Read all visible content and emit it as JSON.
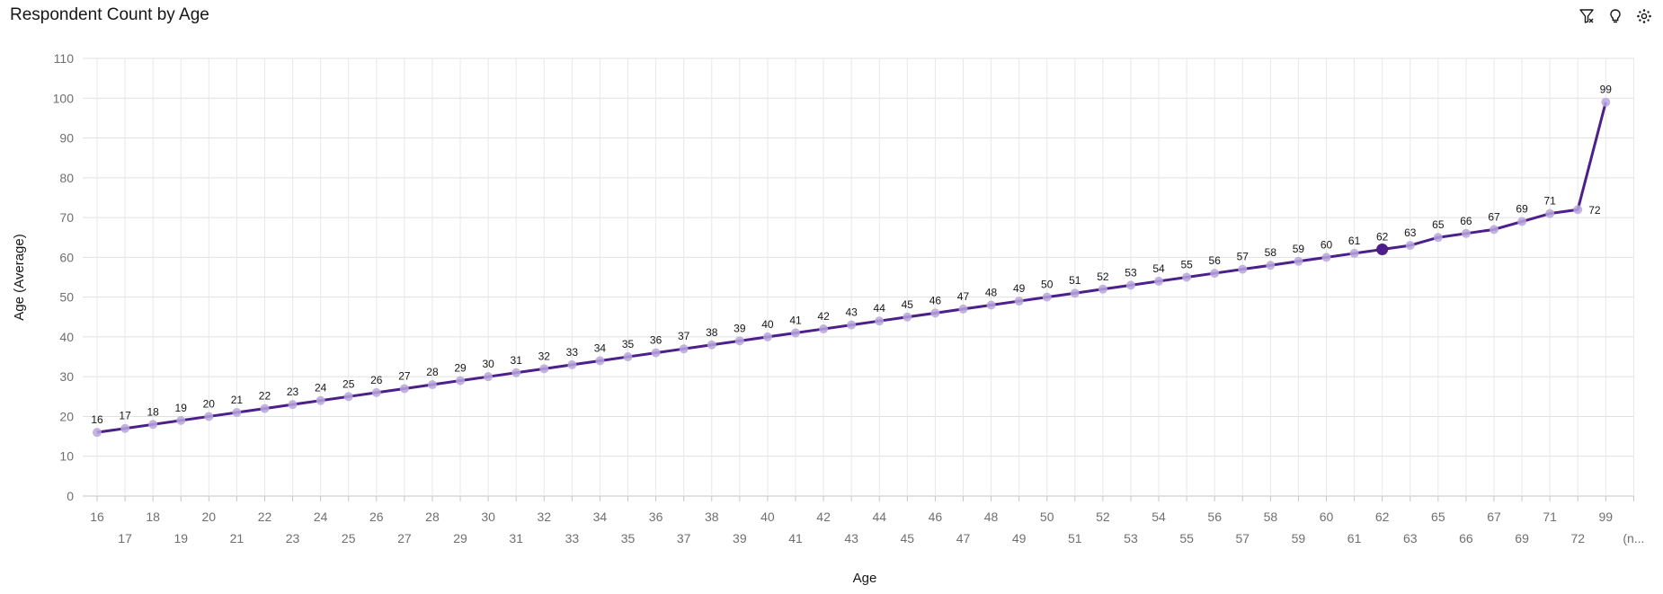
{
  "header": {
    "title": "Respondent Count by Age"
  },
  "toolbar": {
    "icons": [
      "filter-icon",
      "lightbulb-icon",
      "settings-icon"
    ]
  },
  "chart_data": {
    "type": "line",
    "xlabel": "Age",
    "ylabel": "Age (Average)",
    "ylim": [
      0,
      110
    ],
    "yticks": [
      0,
      10,
      20,
      30,
      40,
      50,
      60,
      70,
      80,
      90,
      100,
      110
    ],
    "grid": true,
    "categories": [
      "16",
      "17",
      "18",
      "19",
      "20",
      "21",
      "22",
      "23",
      "24",
      "25",
      "26",
      "27",
      "28",
      "29",
      "30",
      "31",
      "32",
      "33",
      "34",
      "35",
      "36",
      "37",
      "38",
      "39",
      "40",
      "41",
      "42",
      "43",
      "44",
      "45",
      "46",
      "47",
      "48",
      "49",
      "50",
      "51",
      "52",
      "53",
      "54",
      "55",
      "56",
      "57",
      "58",
      "59",
      "60",
      "61",
      "62",
      "63",
      "65",
      "66",
      "67",
      "69",
      "71",
      "72",
      "99",
      "(n..."
    ],
    "values": [
      16,
      17,
      18,
      19,
      20,
      21,
      22,
      23,
      24,
      25,
      26,
      27,
      28,
      29,
      30,
      31,
      32,
      33,
      34,
      35,
      36,
      37,
      38,
      39,
      40,
      41,
      42,
      43,
      44,
      45,
      46,
      47,
      48,
      49,
      50,
      51,
      52,
      53,
      54,
      55,
      56,
      57,
      58,
      59,
      60,
      61,
      62,
      63,
      65,
      66,
      67,
      69,
      71,
      72,
      99,
      null
    ],
    "highlighted_category": "62",
    "line_color": "#4c1f8a",
    "marker_color": "#b7a6dc"
  }
}
